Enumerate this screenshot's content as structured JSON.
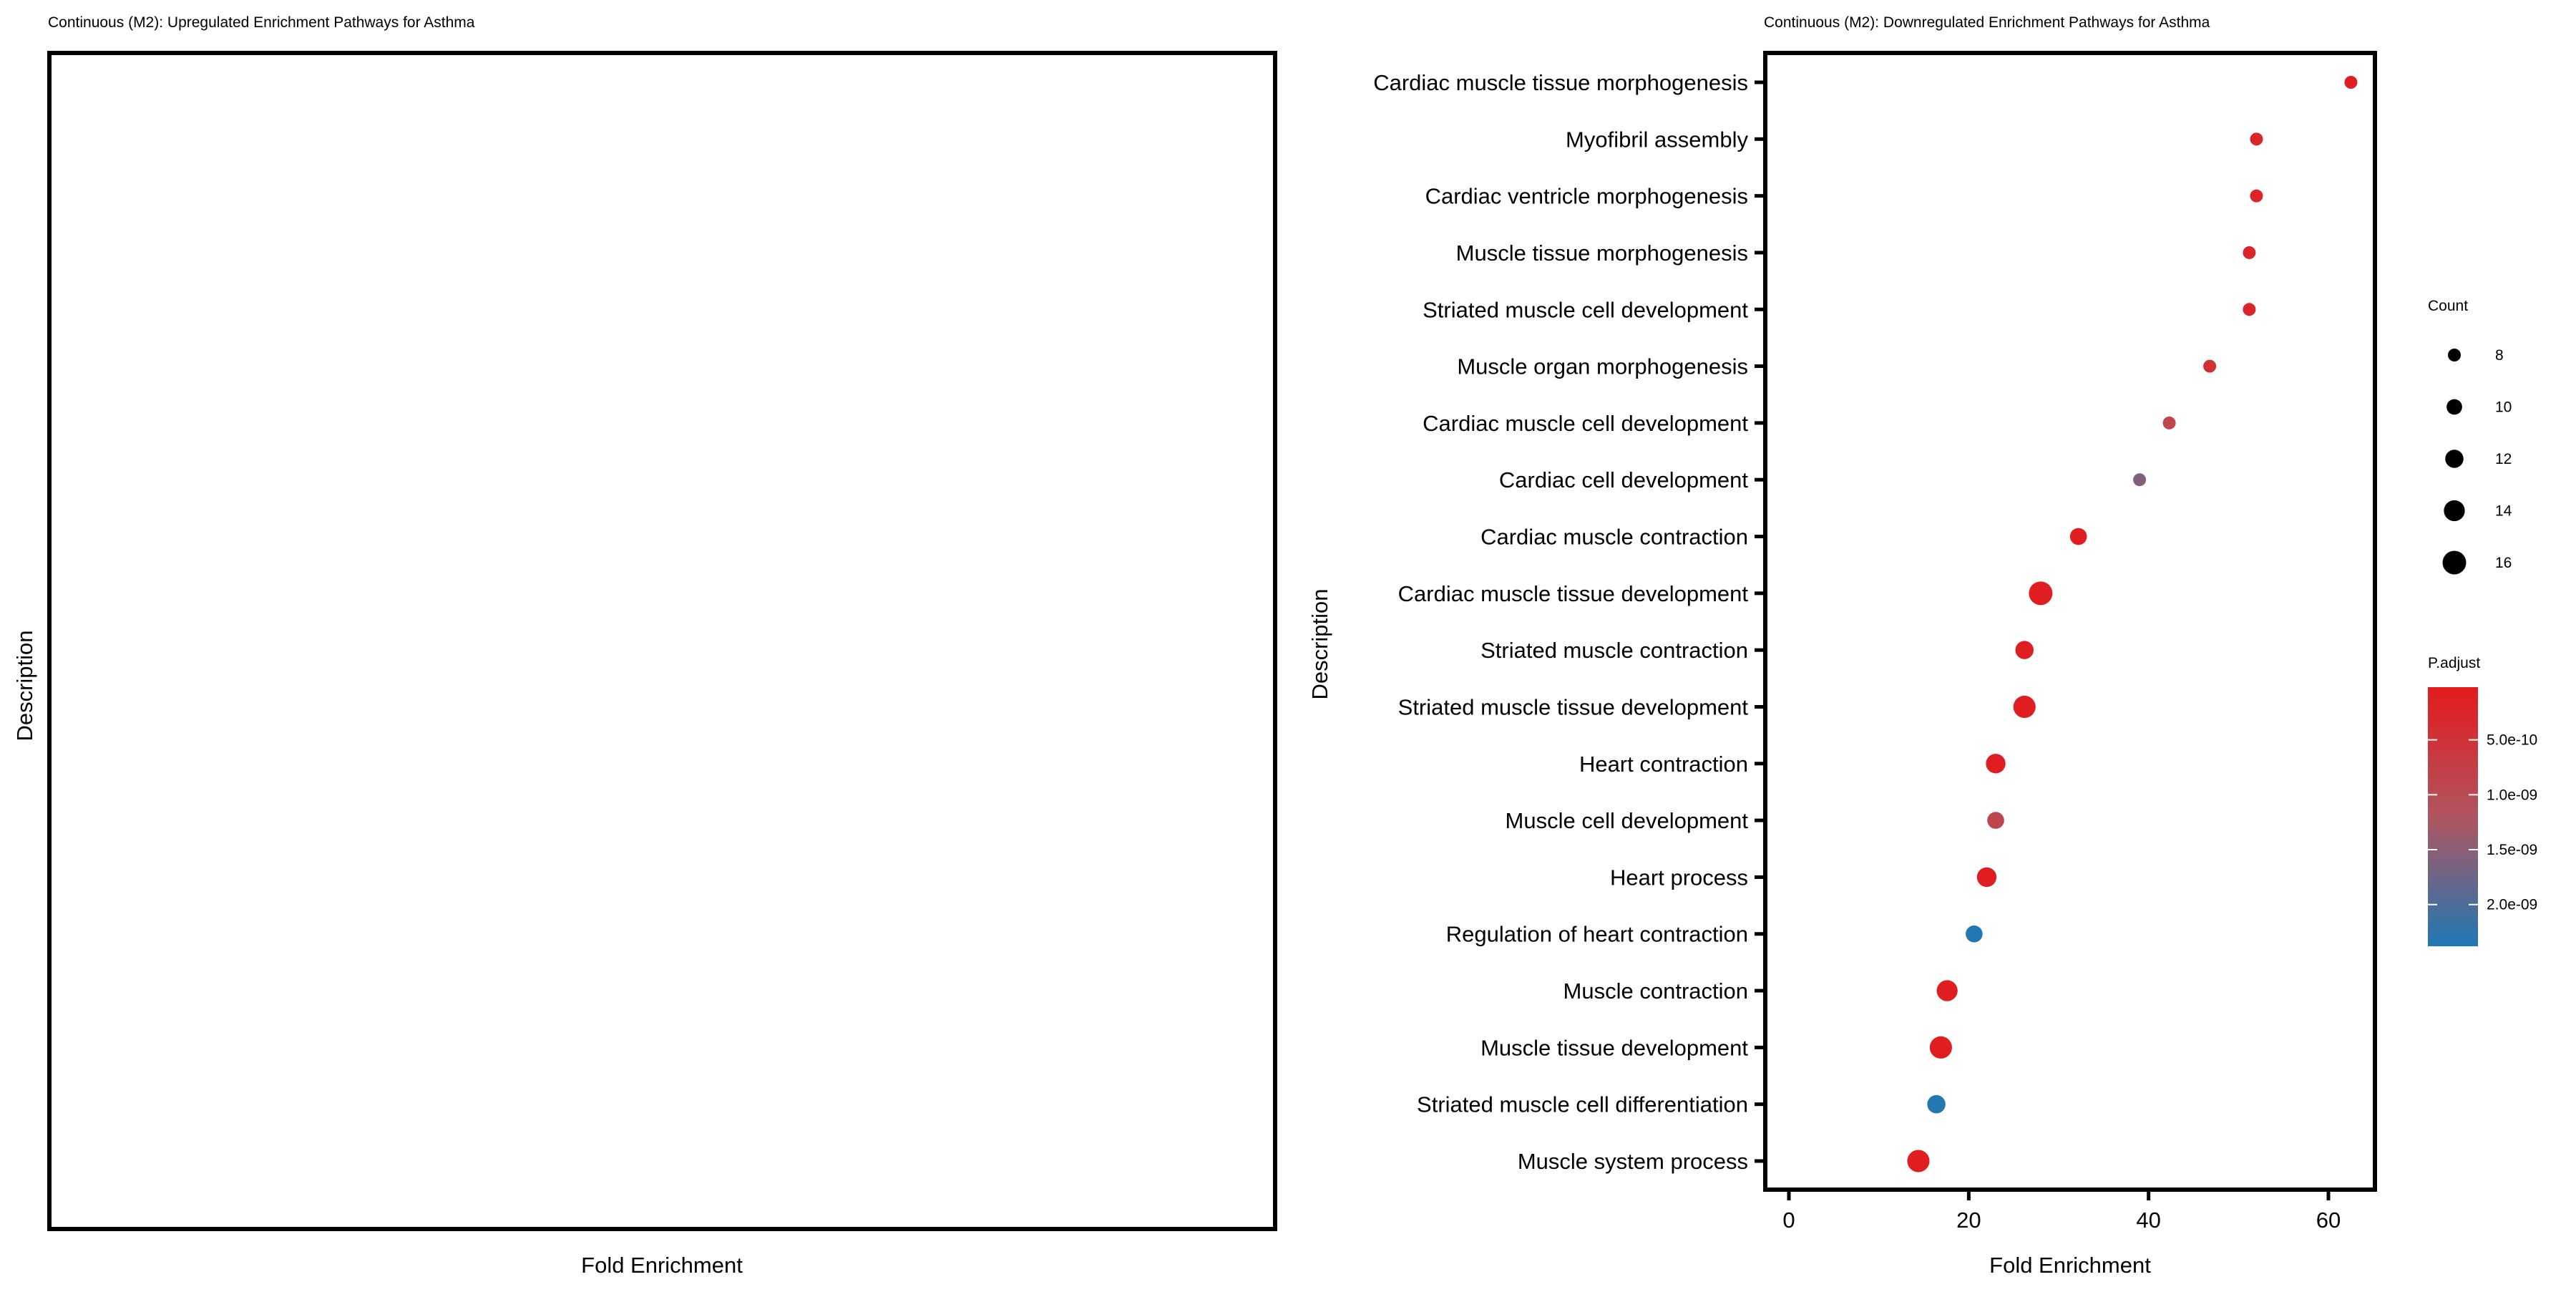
{
  "chart_data": [
    {
      "type": "scatter",
      "title": "Continuous (M2): Upregulated Enrichment Pathways for Asthma",
      "xlabel": "Fold Enrichment",
      "ylabel": "Description",
      "categories": [],
      "points": []
    },
    {
      "type": "scatter",
      "title": "Continuous (M2): Downregulated Enrichment Pathways for Asthma",
      "xlabel": "Fold Enrichment",
      "ylabel": "Description",
      "xlim": [
        -2.5,
        65.5
      ],
      "xticks": [
        0,
        20,
        40,
        60
      ],
      "grid": false,
      "points": [
        {
          "label": "Cardiac muscle tissue morphogenesis",
          "fold": 62.5,
          "count": 8,
          "padj": 1e-10
        },
        {
          "label": "Myofibril assembly",
          "fold": 52.0,
          "count": 8,
          "padj": 2.5e-10
        },
        {
          "label": "Cardiac ventricle morphogenesis",
          "fold": 52.0,
          "count": 8,
          "padj": 2.5e-10
        },
        {
          "label": "Muscle tissue morphogenesis",
          "fold": 51.2,
          "count": 8,
          "padj": 2.5e-10
        },
        {
          "label": "Striated muscle cell development",
          "fold": 51.2,
          "count": 8,
          "padj": 2.5e-10
        },
        {
          "label": "Muscle organ morphogenesis",
          "fold": 46.8,
          "count": 8,
          "padj": 4.5e-10
        },
        {
          "label": "Cardiac muscle cell development",
          "fold": 42.3,
          "count": 8,
          "padj": 9e-10
        },
        {
          "label": "Cardiac cell development",
          "fold": 39.0,
          "count": 8,
          "padj": 1.6e-09
        },
        {
          "label": "Cardiac muscle contraction",
          "fold": 32.2,
          "count": 11,
          "padj": 1e-10
        },
        {
          "label": "Cardiac muscle tissue development",
          "fold": 28.0,
          "count": 16,
          "padj": 1e-10
        },
        {
          "label": "Striated muscle contraction",
          "fold": 26.2,
          "count": 12,
          "padj": 1e-10
        },
        {
          "label": "Striated muscle tissue development",
          "fold": 26.2,
          "count": 15,
          "padj": 1e-10
        },
        {
          "label": "Heart contraction",
          "fold": 23.0,
          "count": 13,
          "padj": 1e-10
        },
        {
          "label": "Muscle cell development",
          "fold": 23.0,
          "count": 11,
          "padj": 9e-10
        },
        {
          "label": "Heart process",
          "fold": 22.0,
          "count": 13,
          "padj": 1e-10
        },
        {
          "label": "Regulation of heart contraction",
          "fold": 20.6,
          "count": 11,
          "padj": 2.35e-09
        },
        {
          "label": "Muscle contraction",
          "fold": 17.6,
          "count": 14,
          "padj": 1e-10
        },
        {
          "label": "Muscle tissue development",
          "fold": 16.9,
          "count": 15,
          "padj": 1e-10
        },
        {
          "label": "Striated muscle cell differentiation",
          "fold": 16.4,
          "count": 12,
          "padj": 2.35e-09
        },
        {
          "label": "Muscle system process",
          "fold": 14.4,
          "count": 15,
          "padj": 1e-10
        }
      ],
      "legend_count": {
        "title": "Count",
        "values": [
          8,
          10,
          12,
          14,
          16
        ],
        "placement": "right"
      },
      "legend_color": {
        "title": "P.adjust",
        "range": [
          2e-11,
          2.38e-09
        ],
        "ticks": [
          {
            "value": 5e-10,
            "label": "5.0e-10"
          },
          {
            "value": 1e-09,
            "label": "1.0e-09"
          },
          {
            "value": 1.5e-09,
            "label": "1.5e-09"
          },
          {
            "value": 2e-09,
            "label": "2.0e-09"
          }
        ],
        "low_color": "#e41a1c",
        "high_color": "#1f78b4",
        "placement": "right"
      }
    }
  ]
}
